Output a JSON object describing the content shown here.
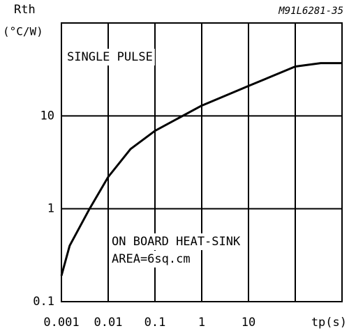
{
  "chart_data": {
    "type": "line",
    "title": "M91L6281-35",
    "ylabel_name": "Rth",
    "ylabel_unit": "(°C/W)",
    "xlabel": "tp(s)",
    "annotations": [
      "SINGLE PULSE",
      "ON BOARD HEAT-SINK",
      "AREA=6sq.cm"
    ],
    "x": [
      0.001,
      0.0015,
      0.004,
      0.01,
      0.03,
      0.1,
      1,
      10,
      100,
      350,
      1000
    ],
    "series": [
      {
        "name": "Rth",
        "color": "#000000",
        "values": [
          0.19,
          0.4,
          1,
          2.2,
          4.4,
          6.9,
          12.9,
          21,
          34,
          37,
          37
        ]
      }
    ],
    "xlim": [
      0.001,
      1000
    ],
    "ylim": [
      0.1,
      100
    ],
    "xticks": [
      0.001,
      0.01,
      0.1,
      1,
      10
    ],
    "xgrid": [
      0.01,
      0.1,
      1,
      10,
      100
    ],
    "yticks": [
      0.1,
      1,
      10
    ],
    "xscale": "log",
    "yscale": "log",
    "grid": true
  }
}
